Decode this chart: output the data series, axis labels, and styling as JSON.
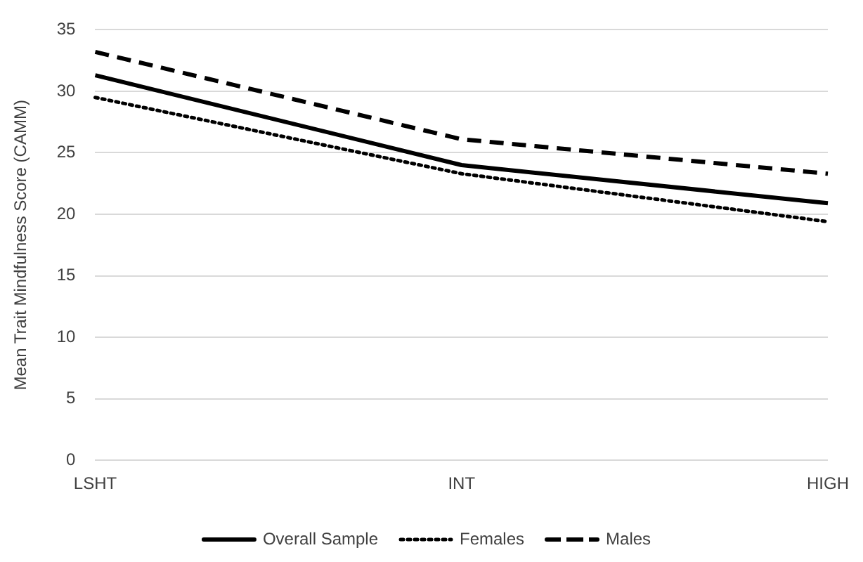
{
  "chart_data": {
    "type": "line",
    "ylabel": "Mean Trait Mindfulness Score (CAMM)",
    "categories": [
      "LSHT",
      "INT",
      "HIGH"
    ],
    "series": [
      {
        "name": "Overall Sample",
        "color": "#000000",
        "line_style": "solid",
        "values": [
          31.3,
          24.0,
          20.9
        ]
      },
      {
        "name": "Females",
        "color": "#000000",
        "line_style": "dotted",
        "values": [
          29.5,
          23.3,
          19.4
        ]
      },
      {
        "name": "Males",
        "color": "#000000",
        "line_style": "dashed",
        "values": [
          33.2,
          26.1,
          23.3
        ]
      }
    ],
    "ylim": [
      0,
      35
    ],
    "yticks": [
      0,
      5,
      10,
      15,
      20,
      25,
      30,
      35
    ],
    "grid": "y",
    "legend": "bottom",
    "marker": "none"
  }
}
